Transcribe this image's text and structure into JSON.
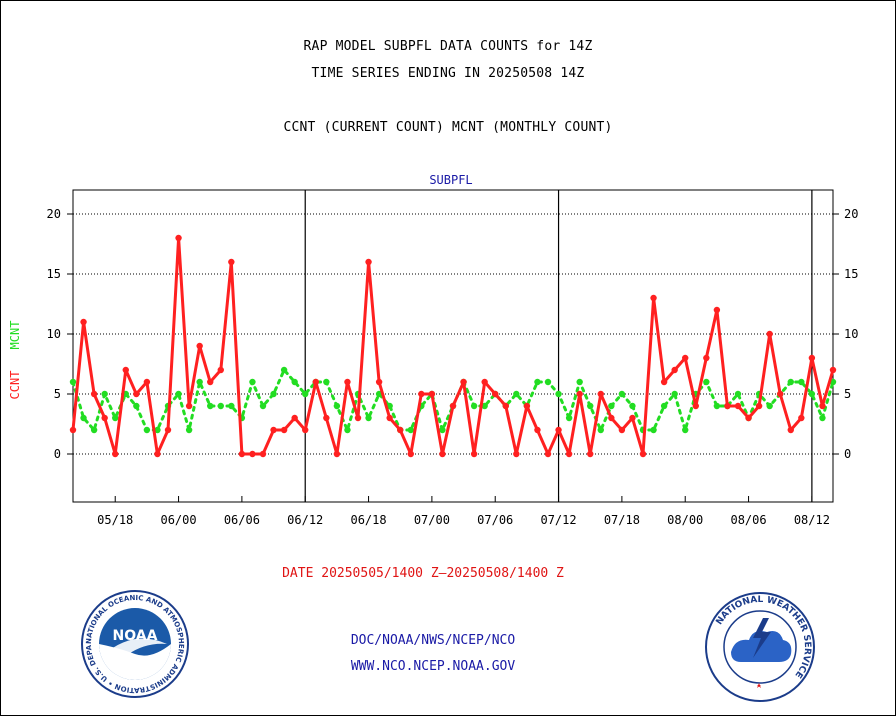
{
  "header": {
    "line1": "RAP MODEL SUBPFL DATA COUNTS for 14Z",
    "line2": "TIME SERIES ENDING IN 20250508 14Z",
    "line3": "CCNT (CURRENT COUNT) MCNT (MONTHLY COUNT)"
  },
  "date_range": "DATE 20250505/1400 Z—20250508/1400 Z",
  "footer": {
    "org": "DOC/NOAA/NWS/NCEP/NCO",
    "url": "WWW.NCO.NCEP.NOAA.GOV"
  },
  "logos": {
    "noaa": {
      "text": "NOAA",
      "ring": "NATIONAL OCEANIC AND ATMOSPHERIC ADMINISTRATION • U.S. DEPARTMENT OF COMMERCE"
    },
    "nws": {
      "ring": "NATIONAL WEATHER SERVICE"
    }
  },
  "colors": {
    "ccnt": "#ff2020",
    "mcnt": "#22dd22",
    "axis": "#000000",
    "label": "#1a1aa6"
  },
  "chart_data": {
    "type": "line",
    "title": "SUBPFL",
    "ylabel_ccnt": "CCNT",
    "ylabel_mcnt": "MCNT",
    "ylim": [
      -4,
      22
    ],
    "yticks": [
      0,
      5,
      10,
      15,
      20
    ],
    "grid": true,
    "x_tick_labels": [
      "05/18",
      "06/00",
      "06/06",
      "06/12",
      "06/18",
      "07/00",
      "07/06",
      "07/12",
      "07/18",
      "08/00",
      "08/06",
      "08/12"
    ],
    "x_tick_index": [
      4,
      10,
      16,
      22,
      28,
      34,
      40,
      46,
      52,
      58,
      64,
      70
    ],
    "x_range": [
      0,
      72
    ],
    "day_boundaries": [
      22,
      46,
      70
    ],
    "series": [
      {
        "name": "CCNT",
        "values": [
          2,
          11,
          5,
          3,
          0,
          7,
          5,
          6,
          0,
          2,
          18,
          4,
          9,
          6,
          7,
          16,
          0,
          0,
          0,
          2,
          2,
          3,
          2,
          6,
          3,
          0,
          6,
          3,
          16,
          6,
          3,
          2,
          0,
          5,
          5,
          0,
          4,
          6,
          0,
          6,
          5,
          4,
          0,
          4,
          2,
          0,
          2,
          0,
          5,
          0,
          5,
          3,
          2,
          3,
          0,
          13,
          6,
          7,
          8,
          4,
          8,
          12,
          4,
          4,
          3,
          4,
          10,
          5,
          2,
          3,
          8,
          4,
          7
        ]
      },
      {
        "name": "MCNT",
        "values": [
          6,
          3,
          2,
          5,
          3,
          5,
          4,
          2,
          2,
          4,
          5,
          2,
          6,
          4,
          4,
          4,
          3,
          6,
          4,
          5,
          7,
          6,
          5,
          6,
          6,
          4,
          2,
          5,
          3,
          5,
          4,
          2,
          2,
          4,
          5,
          2,
          4,
          6,
          4,
          4,
          5,
          4,
          5,
          4,
          6,
          6,
          5,
          3,
          6,
          4,
          2,
          4,
          5,
          4,
          2,
          2,
          4,
          5,
          2,
          5,
          6,
          4,
          4,
          5,
          3,
          5,
          4,
          5,
          6,
          6,
          5,
          3,
          6
        ]
      }
    ]
  }
}
